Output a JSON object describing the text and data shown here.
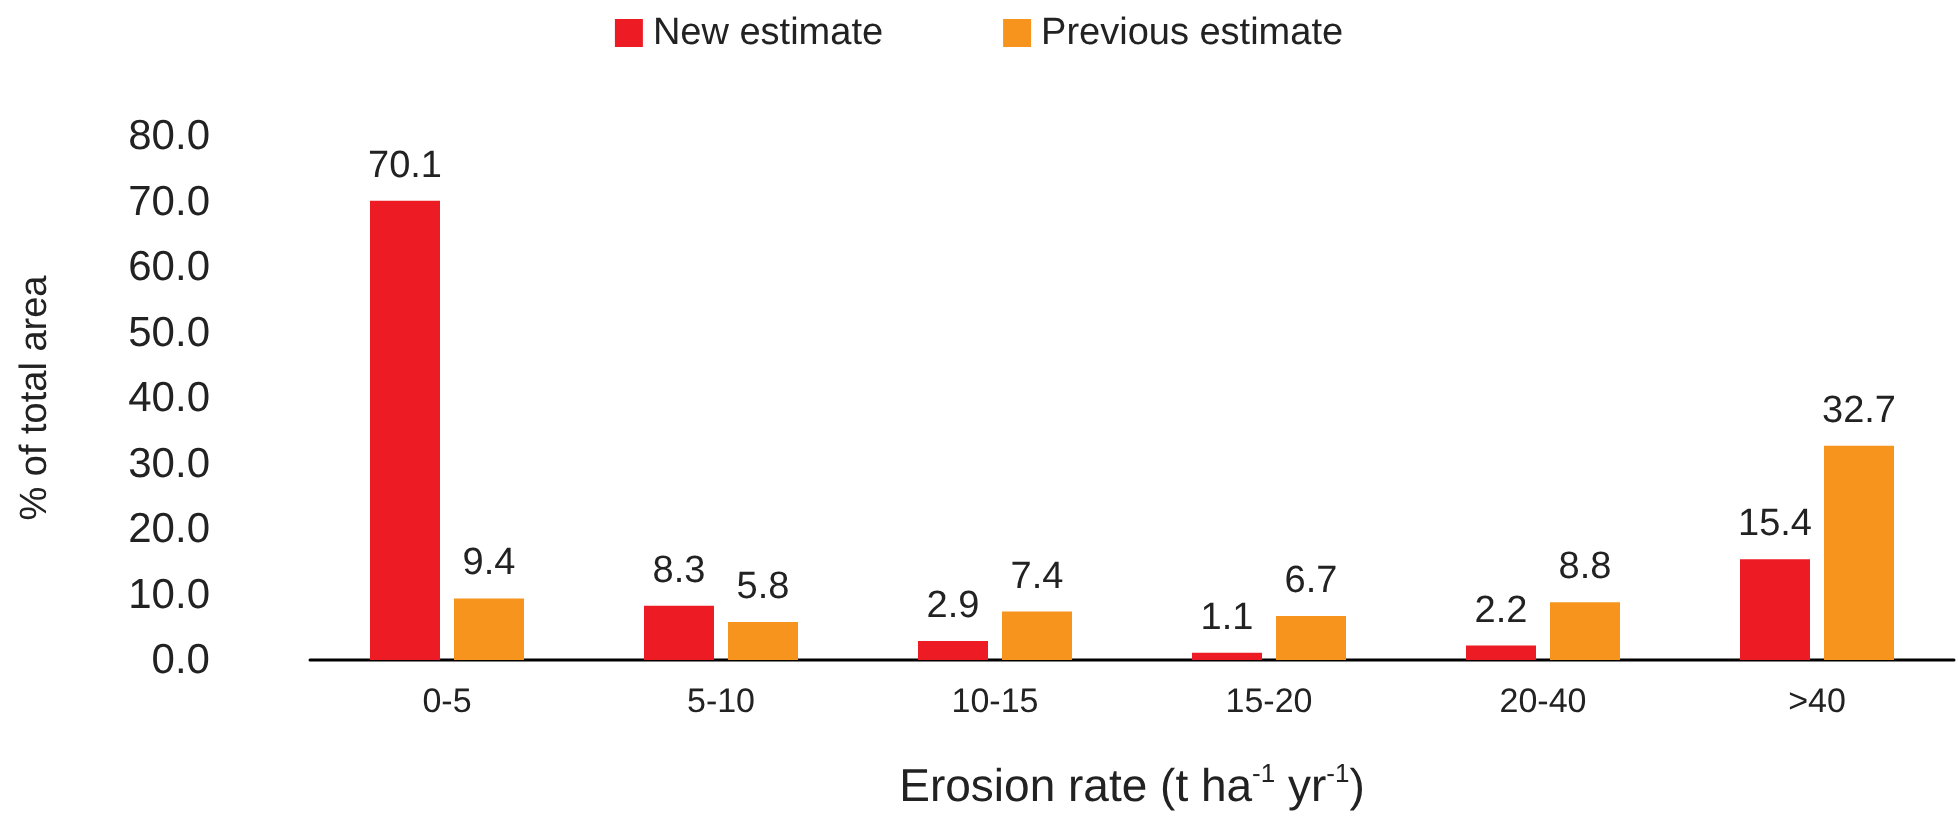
{
  "chart_data": {
    "type": "bar",
    "xlabel": "Erosion rate (t ha$^{-1}$ yr$^{-1}$)",
    "ylabel": "% of total area",
    "categories": [
      "0-5",
      "5-10",
      "10-15",
      "15-20",
      "20-40",
      ">40"
    ],
    "series": [
      {
        "name": "New estimate",
        "color": "#ed1c24",
        "values": [
          70.1,
          8.3,
          2.9,
          1.1,
          2.2,
          15.4
        ]
      },
      {
        "name": "Previous estimate",
        "color": "#f7941d",
        "values": [
          9.4,
          5.8,
          7.4,
          6.7,
          8.8,
          32.7
        ]
      }
    ],
    "ylim": [
      0,
      80
    ],
    "yticks": [
      {
        "value": 0,
        "label": "0.0"
      },
      {
        "value": 10,
        "label": "10.0"
      },
      {
        "value": 20,
        "label": "20.0"
      },
      {
        "value": 30,
        "label": "30.0"
      },
      {
        "value": 40,
        "label": "40.0"
      },
      {
        "value": 50,
        "label": "50.0"
      },
      {
        "value": 60,
        "label": "60.0"
      },
      {
        "value": 70,
        "label": "70.0"
      },
      {
        "value": 80,
        "label": "80.0"
      }
    ],
    "grid": false,
    "legend": "top",
    "data_labels": true
  }
}
